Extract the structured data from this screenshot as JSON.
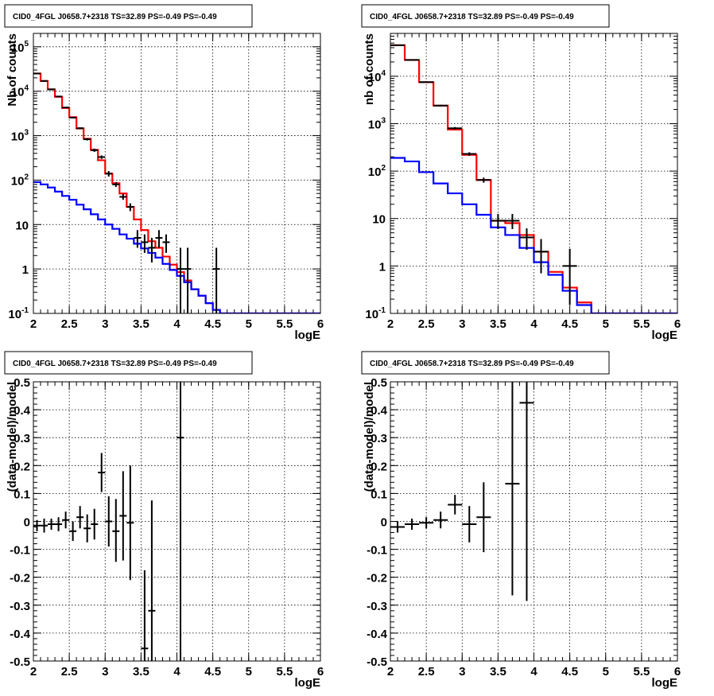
{
  "chart_data": [
    {
      "type": "line",
      "panel": "top-left",
      "title": "CID0_4FGL J0658.7+2318 TS=32.89 PS=-0.49 PS=-0.49",
      "xlabel": "logE",
      "ylabel": "Nb of counts",
      "xlim": [
        2,
        6
      ],
      "ylim": [
        0.1,
        200000
      ],
      "yscale": "log",
      "x_ticks": [
        "2",
        "2.5",
        "3",
        "3.5",
        "4",
        "4.5",
        "5",
        "5.5",
        "6"
      ],
      "y_ticks": [
        {
          "value": 0.1,
          "base": "10",
          "exp": "-1"
        },
        {
          "value": 1,
          "base": "1",
          "exp": ""
        },
        {
          "value": 10,
          "base": "10",
          "exp": ""
        },
        {
          "value": 100,
          "base": "10",
          "exp": "2"
        },
        {
          "value": 1000,
          "base": "10",
          "exp": "3"
        },
        {
          "value": 10000,
          "base": "10",
          "exp": "4"
        },
        {
          "value": 100000,
          "base": "10",
          "exp": "5"
        }
      ],
      "grid": true,
      "series": [
        {
          "color": "#ff0000",
          "style": "step",
          "bin_width": 0.1,
          "x": [
            2.0,
            2.1,
            2.2,
            2.3,
            2.4,
            2.5,
            2.6,
            2.7,
            2.8,
            2.9,
            3.0,
            3.1,
            3.2,
            3.3,
            3.4,
            3.5,
            3.6,
            3.7,
            3.8,
            3.9,
            4.0,
            4.1,
            4.2,
            4.3,
            4.4,
            4.5,
            4.6,
            4.7,
            4.8,
            4.9,
            5.0,
            5.1,
            5.2,
            5.3,
            5.4,
            5.5,
            5.6,
            5.7,
            5.8,
            5.9
          ],
          "y": [
            25000,
            17000,
            11000,
            7500,
            4200,
            2600,
            1450,
            850,
            480,
            280,
            140,
            85,
            50,
            25,
            13,
            7.5,
            4.2,
            3.0,
            1.9,
            1.25,
            0.85,
            0.55,
            0.35,
            0.25,
            0.17,
            0.12,
            0.1,
            0.1,
            0.1,
            0.1,
            0.1,
            0.1,
            0.1,
            0.1,
            0.1,
            0.1,
            0.1,
            0.1,
            0.1,
            0.1
          ]
        },
        {
          "color": "#0000ff",
          "style": "step",
          "bin_width": 0.1,
          "x": [
            2.0,
            2.1,
            2.2,
            2.3,
            2.4,
            2.5,
            2.6,
            2.7,
            2.8,
            2.9,
            3.0,
            3.1,
            3.2,
            3.3,
            3.4,
            3.5,
            3.6,
            3.7,
            3.8,
            3.9,
            4.0,
            4.1,
            4.2,
            4.3,
            4.4,
            4.5,
            4.6,
            4.7,
            4.8,
            4.9,
            5.0,
            5.1,
            5.2,
            5.3,
            5.4,
            5.5,
            5.6,
            5.7,
            5.8,
            5.9
          ],
          "y": [
            90,
            80,
            68,
            55,
            44,
            36,
            28,
            22,
            17,
            13,
            10,
            8,
            6,
            4.8,
            3.7,
            2.9,
            2.3,
            1.8,
            1.3,
            0.95,
            0.7,
            0.5,
            0.35,
            0.25,
            0.17,
            0.12,
            0.1,
            0.1,
            0.1,
            0.1,
            0.1,
            0.1,
            0.1,
            0.1,
            0.1,
            0.1,
            0.1,
            0.1,
            0.1,
            0.1
          ]
        },
        {
          "color": "#000000",
          "style": "errorbar",
          "x_half_width": 0.05,
          "points": [
            {
              "x": 2.05,
              "y": 25000,
              "lo": 24500,
              "hi": 25500
            },
            {
              "x": 2.15,
              "y": 17000,
              "lo": 16600,
              "hi": 17400
            },
            {
              "x": 2.25,
              "y": 11000,
              "lo": 10700,
              "hi": 11300
            },
            {
              "x": 2.35,
              "y": 7600,
              "lo": 7400,
              "hi": 7800
            },
            {
              "x": 2.45,
              "y": 4300,
              "lo": 4150,
              "hi": 4450
            },
            {
              "x": 2.55,
              "y": 2550,
              "lo": 2450,
              "hi": 2650
            },
            {
              "x": 2.65,
              "y": 1470,
              "lo": 1400,
              "hi": 1540
            },
            {
              "x": 2.75,
              "y": 830,
              "lo": 780,
              "hi": 880
            },
            {
              "x": 2.85,
              "y": 470,
              "lo": 430,
              "hi": 510
            },
            {
              "x": 2.95,
              "y": 330,
              "lo": 300,
              "hi": 360
            },
            {
              "x": 3.05,
              "y": 140,
              "lo": 120,
              "hi": 160
            },
            {
              "x": 3.15,
              "y": 80,
              "lo": 70,
              "hi": 90
            },
            {
              "x": 3.25,
              "y": 42,
              "lo": 36,
              "hi": 49
            },
            {
              "x": 3.35,
              "y": 25,
              "lo": 20,
              "hi": 30
            },
            {
              "x": 3.45,
              "y": 5,
              "lo": 3,
              "hi": 7.5
            },
            {
              "x": 3.55,
              "y": 4,
              "lo": 2.3,
              "hi": 6
            },
            {
              "x": 3.65,
              "y": 3,
              "lo": 1.4,
              "hi": 5
            },
            {
              "x": 3.75,
              "y": 5,
              "lo": 3,
              "hi": 7.5
            },
            {
              "x": 3.85,
              "y": 4,
              "lo": 2.3,
              "hi": 6
            },
            {
              "x": 4.05,
              "y": 1,
              "lo": 0.1,
              "hi": 3
            },
            {
              "x": 4.15,
              "y": 1,
              "lo": 0.1,
              "hi": 3
            },
            {
              "x": 4.55,
              "y": 1,
              "lo": 0.1,
              "hi": 3
            }
          ]
        }
      ]
    },
    {
      "type": "line",
      "panel": "top-right",
      "title": "CID0_4FGL J0658.7+2318 TS=32.89 PS=-0.49 PS=-0.49",
      "xlabel": "logE",
      "ylabel": "nb of counts",
      "xlim": [
        2,
        6
      ],
      "ylim": [
        0.1,
        80000
      ],
      "yscale": "log",
      "x_ticks": [
        "2",
        "2.5",
        "3",
        "3.5",
        "4",
        "4.5",
        "5",
        "5.5",
        "6"
      ],
      "y_ticks": [
        {
          "value": 0.1,
          "base": "10",
          "exp": "-1"
        },
        {
          "value": 1,
          "base": "1",
          "exp": ""
        },
        {
          "value": 10,
          "base": "10",
          "exp": ""
        },
        {
          "value": 100,
          "base": "10",
          "exp": "2"
        },
        {
          "value": 1000,
          "base": "10",
          "exp": "3"
        },
        {
          "value": 10000,
          "base": "10",
          "exp": "4"
        }
      ],
      "grid": true,
      "series": [
        {
          "color": "#ff0000",
          "style": "step",
          "bin_width": 0.2,
          "x": [
            2.0,
            2.2,
            2.4,
            2.6,
            2.8,
            3.0,
            3.2,
            3.4,
            3.6,
            3.8,
            4.0,
            4.2,
            4.4,
            4.6,
            4.8,
            5.0,
            5.2,
            5.4,
            5.6,
            5.8
          ],
          "y": [
            45000,
            22000,
            7500,
            2400,
            750,
            220,
            65,
            9,
            8,
            4.5,
            2.0,
            0.75,
            0.35,
            0.17,
            0.1,
            0.1,
            0.1,
            0.1,
            0.1,
            0.1
          ]
        },
        {
          "color": "#0000ff",
          "style": "step",
          "bin_width": 0.2,
          "x": [
            2.0,
            2.2,
            2.4,
            2.6,
            2.8,
            3.0,
            3.2,
            3.4,
            3.6,
            3.8,
            4.0,
            4.2,
            4.4,
            4.6,
            4.8,
            5.0,
            5.2,
            5.4,
            5.6,
            5.8
          ],
          "y": [
            190,
            160,
            95,
            55,
            34,
            20,
            12,
            6.5,
            4.5,
            2.4,
            1.2,
            0.65,
            0.3,
            0.15,
            0.1,
            0.1,
            0.1,
            0.1,
            0.1,
            0.1
          ]
        },
        {
          "color": "#000000",
          "style": "errorbar",
          "x_half_width": 0.1,
          "points": [
            {
              "x": 2.1,
              "y": 45000,
              "lo": 44500,
              "hi": 45500
            },
            {
              "x": 2.3,
              "y": 22000,
              "lo": 21700,
              "hi": 22300
            },
            {
              "x": 2.5,
              "y": 7500,
              "lo": 7300,
              "hi": 7700
            },
            {
              "x": 2.7,
              "y": 2400,
              "lo": 2300,
              "hi": 2500
            },
            {
              "x": 2.9,
              "y": 800,
              "lo": 750,
              "hi": 850
            },
            {
              "x": 3.1,
              "y": 230,
              "lo": 210,
              "hi": 250
            },
            {
              "x": 3.3,
              "y": 65,
              "lo": 57,
              "hi": 73
            },
            {
              "x": 3.5,
              "y": 9,
              "lo": 6,
              "hi": 12.5
            },
            {
              "x": 3.7,
              "y": 9,
              "lo": 6,
              "hi": 12.5
            },
            {
              "x": 3.9,
              "y": 4,
              "lo": 2.2,
              "hi": 6.2
            },
            {
              "x": 4.1,
              "y": 2,
              "lo": 0.7,
              "hi": 3.7
            },
            {
              "x": 4.5,
              "y": 1,
              "lo": 0.15,
              "hi": 2.3
            }
          ]
        }
      ]
    },
    {
      "type": "scatter",
      "panel": "bottom-left",
      "title": "CID0_4FGL J0658.7+2318 TS=32.89 PS=-0.49 PS=-0.49",
      "xlabel": "logE",
      "ylabel": "(data-model)/model",
      "xlim": [
        2,
        6
      ],
      "ylim": [
        -0.5,
        0.5
      ],
      "yscale": "linear",
      "x_ticks": [
        "2",
        "2.5",
        "3",
        "3.5",
        "4",
        "4.5",
        "5",
        "5.5",
        "6"
      ],
      "y_ticks": [
        "-0.5",
        "-0.4",
        "-0.3",
        "-0.2",
        "-0.1",
        "0",
        "0.1",
        "0.2",
        "0.3",
        "0.4",
        "0.5"
      ],
      "grid": true,
      "series": [
        {
          "color": "#000000",
          "style": "errorbar",
          "x_half_width": 0.05,
          "points": [
            {
              "x": 2.05,
              "y": -0.015,
              "lo": -0.035,
              "hi": 0.005
            },
            {
              "x": 2.15,
              "y": -0.015,
              "lo": -0.04,
              "hi": 0.01
            },
            {
              "x": 2.25,
              "y": -0.01,
              "lo": -0.03,
              "hi": 0.01
            },
            {
              "x": 2.35,
              "y": -0.01,
              "lo": -0.035,
              "hi": 0.015
            },
            {
              "x": 2.45,
              "y": 0.005,
              "lo": -0.025,
              "hi": 0.035
            },
            {
              "x": 2.55,
              "y": -0.035,
              "lo": -0.07,
              "hi": 0.0
            },
            {
              "x": 2.65,
              "y": 0.015,
              "lo": -0.025,
              "hi": 0.055
            },
            {
              "x": 2.75,
              "y": -0.025,
              "lo": -0.075,
              "hi": 0.025
            },
            {
              "x": 2.85,
              "y": -0.01,
              "lo": -0.065,
              "hi": 0.045
            },
            {
              "x": 2.95,
              "y": 0.175,
              "lo": 0.105,
              "hi": 0.245
            },
            {
              "x": 3.05,
              "y": 0.0,
              "lo": -0.09,
              "hi": 0.09
            },
            {
              "x": 3.15,
              "y": -0.035,
              "lo": -0.145,
              "hi": 0.08
            },
            {
              "x": 3.25,
              "y": 0.02,
              "lo": -0.14,
              "hi": 0.18
            },
            {
              "x": 3.35,
              "y": -0.005,
              "lo": -0.21,
              "hi": 0.2
            },
            {
              "x": 3.55,
              "y": -0.455,
              "lo": -0.5,
              "hi": -0.175
            },
            {
              "x": 3.65,
              "y": -0.32,
              "lo": -0.5,
              "hi": 0.075
            },
            {
              "x": 4.05,
              "y": 0.3,
              "lo": -0.5,
              "hi": 0.5
            }
          ]
        }
      ]
    },
    {
      "type": "scatter",
      "panel": "bottom-right",
      "title": "CID0_4FGL J0658.7+2318 TS=32.89 PS=-0.49 PS=-0.49",
      "xlabel": "logE",
      "ylabel": "(data-model)/model",
      "xlim": [
        2,
        6
      ],
      "ylim": [
        -0.5,
        0.5
      ],
      "yscale": "linear",
      "x_ticks": [
        "2",
        "2.5",
        "3",
        "3.5",
        "4",
        "4.5",
        "5",
        "5.5",
        "6"
      ],
      "y_ticks": [
        "-0.5",
        "-0.4",
        "-0.3",
        "-0.2",
        "-0.1",
        "0",
        "0.1",
        "0.2",
        "0.3",
        "0.4",
        "0.5"
      ],
      "grid": true,
      "series": [
        {
          "color": "#000000",
          "style": "errorbar",
          "x_half_width": 0.1,
          "points": [
            {
              "x": 2.1,
              "y": -0.02,
              "lo": -0.04,
              "hi": 0.0
            },
            {
              "x": 2.3,
              "y": -0.01,
              "lo": -0.03,
              "hi": 0.01
            },
            {
              "x": 2.5,
              "y": -0.005,
              "lo": -0.025,
              "hi": 0.015
            },
            {
              "x": 2.7,
              "y": 0.005,
              "lo": -0.025,
              "hi": 0.035
            },
            {
              "x": 2.9,
              "y": 0.06,
              "lo": 0.025,
              "hi": 0.095
            },
            {
              "x": 3.1,
              "y": -0.01,
              "lo": -0.075,
              "hi": 0.055
            },
            {
              "x": 3.3,
              "y": 0.015,
              "lo": -0.11,
              "hi": 0.14
            },
            {
              "x": 3.7,
              "y": 0.135,
              "lo": -0.265,
              "hi": 0.5
            },
            {
              "x": 3.9,
              "y": 0.425,
              "lo": -0.285,
              "hi": 0.5
            }
          ]
        }
      ]
    }
  ]
}
